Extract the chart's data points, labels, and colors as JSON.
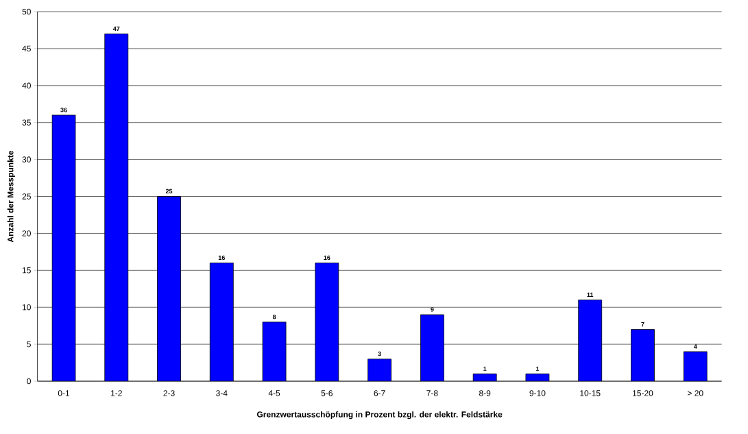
{
  "chart_data": {
    "type": "bar",
    "xlabel": "Grenzwertausschöpfung in Prozent bzgl. der elektr. Feldstärke",
    "ylabel": "Anzahl der Messpunkte",
    "categories": [
      "0-1",
      "1-2",
      "2-3",
      "3-4",
      "4-5",
      "5-6",
      "6-7",
      "7-8",
      "8-9",
      "9-10",
      "10-15",
      "15-20",
      "> 20"
    ],
    "values": [
      36,
      47,
      25,
      16,
      8,
      16,
      3,
      9,
      1,
      1,
      11,
      7,
      4
    ],
    "color": "#0000ff",
    "ylim": [
      0,
      50
    ],
    "yticks": [
      0,
      5,
      10,
      15,
      20,
      25,
      30,
      35,
      40,
      45,
      50
    ],
    "grid": "y",
    "data_labels": true
  }
}
